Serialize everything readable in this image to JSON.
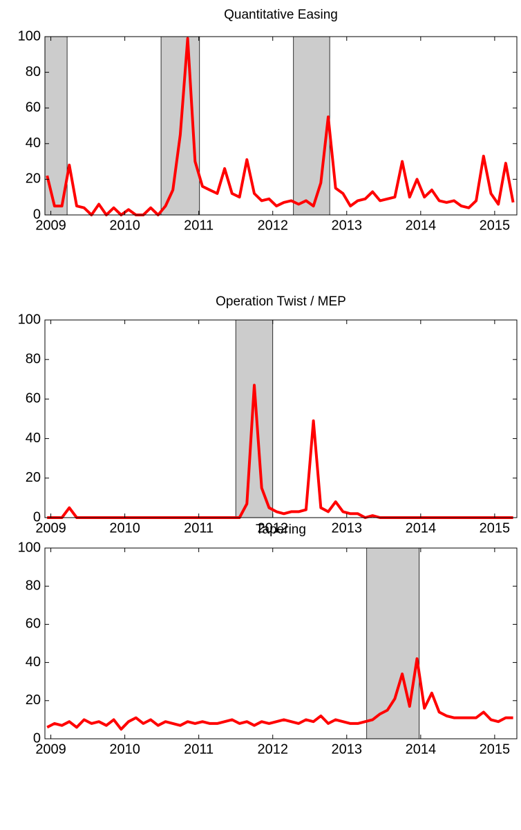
{
  "chart_data": [
    {
      "type": "line",
      "title": "Quantitative Easing",
      "color": "#ff0000",
      "shade_color": "#cccccc",
      "xlim": [
        2008.92,
        2015.3
      ],
      "xticks": [
        2009,
        2010,
        2011,
        2012,
        2013,
        2014,
        2015
      ],
      "ylim": [
        0,
        100
      ],
      "yticks": [
        0,
        20,
        40,
        60,
        80,
        100
      ],
      "shaded": [
        [
          2008.92,
          2009.22
        ],
        [
          2010.49,
          2011.01
        ],
        [
          2012.28,
          2012.77
        ]
      ],
      "x": [
        2008.95,
        2009.05,
        2009.15,
        2009.25,
        2009.35,
        2009.45,
        2009.55,
        2009.65,
        2009.75,
        2009.85,
        2009.95,
        2010.05,
        2010.15,
        2010.25,
        2010.35,
        2010.45,
        2010.55,
        2010.65,
        2010.75,
        2010.85,
        2010.95,
        2011.05,
        2011.15,
        2011.25,
        2011.35,
        2011.45,
        2011.55,
        2011.65,
        2011.75,
        2011.85,
        2011.95,
        2012.05,
        2012.15,
        2012.25,
        2012.35,
        2012.45,
        2012.55,
        2012.65,
        2012.75,
        2012.85,
        2012.95,
        2013.05,
        2013.15,
        2013.25,
        2013.35,
        2013.45,
        2013.55,
        2013.65,
        2013.75,
        2013.85,
        2013.95,
        2014.05,
        2014.15,
        2014.25,
        2014.35,
        2014.45,
        2014.55,
        2014.65,
        2014.75,
        2014.85,
        2014.95,
        2015.05,
        2015.15,
        2015.25
      ],
      "values": [
        22,
        5,
        5,
        28,
        5,
        4,
        0,
        6,
        0,
        4,
        0,
        3,
        0,
        0,
        4,
        0,
        5,
        14,
        45,
        99,
        30,
        16,
        14,
        12,
        26,
        12,
        10,
        31,
        12,
        8,
        9,
        5,
        7,
        8,
        6,
        8,
        5,
        18,
        55,
        15,
        12,
        5,
        8,
        9,
        13,
        8,
        9,
        10,
        30,
        10,
        20,
        10,
        14,
        8,
        7,
        8,
        5,
        4,
        8,
        33,
        12,
        6,
        29,
        7
      ]
    },
    {
      "type": "line",
      "title": "Operation Twist / MEP",
      "color": "#ff0000",
      "shade_color": "#cccccc",
      "xlim": [
        2008.92,
        2015.3
      ],
      "xticks": [
        2009,
        2010,
        2011,
        2012,
        2013,
        2014,
        2015
      ],
      "ylim": [
        0,
        100
      ],
      "yticks": [
        0,
        20,
        40,
        60,
        80,
        100
      ],
      "shaded": [
        [
          2011.5,
          2012.0
        ]
      ],
      "x": [
        2008.95,
        2009.05,
        2009.15,
        2009.25,
        2009.35,
        2009.45,
        2009.55,
        2009.65,
        2009.75,
        2009.85,
        2009.95,
        2010.05,
        2010.15,
        2010.25,
        2010.35,
        2010.45,
        2010.55,
        2010.65,
        2010.75,
        2010.85,
        2010.95,
        2011.05,
        2011.15,
        2011.25,
        2011.35,
        2011.45,
        2011.55,
        2011.65,
        2011.75,
        2011.85,
        2011.95,
        2012.05,
        2012.15,
        2012.25,
        2012.35,
        2012.45,
        2012.55,
        2012.65,
        2012.75,
        2012.85,
        2012.95,
        2013.05,
        2013.15,
        2013.25,
        2013.35,
        2013.45,
        2013.55,
        2013.65,
        2013.75,
        2013.85,
        2013.95,
        2014.05,
        2014.15,
        2014.25,
        2014.35,
        2014.45,
        2014.55,
        2014.65,
        2014.75,
        2014.85,
        2014.95,
        2015.05,
        2015.15,
        2015.25
      ],
      "values": [
        0,
        0,
        0,
        5,
        0,
        0,
        0,
        0,
        0,
        0,
        0,
        0,
        0,
        0,
        0,
        0,
        0,
        0,
        0,
        0,
        0,
        0,
        0,
        0,
        0,
        0,
        0,
        7,
        67,
        15,
        5,
        3,
        2,
        3,
        3,
        4,
        49,
        5,
        3,
        8,
        3,
        2,
        2,
        0,
        1,
        0,
        0,
        0,
        0,
        0,
        0,
        0,
        0,
        0,
        0,
        0,
        0,
        0,
        0,
        0,
        0,
        0,
        0,
        0
      ]
    },
    {
      "type": "line",
      "title": "Tapering",
      "color": "#ff0000",
      "shade_color": "#cccccc",
      "xlim": [
        2008.92,
        2015.3
      ],
      "xticks": [
        2009,
        2010,
        2011,
        2012,
        2013,
        2014,
        2015
      ],
      "ylim": [
        0,
        100
      ],
      "yticks": [
        0,
        20,
        40,
        60,
        80,
        100
      ],
      "shaded": [
        [
          2013.27,
          2013.98
        ]
      ],
      "x": [
        2008.95,
        2009.05,
        2009.15,
        2009.25,
        2009.35,
        2009.45,
        2009.55,
        2009.65,
        2009.75,
        2009.85,
        2009.95,
        2010.05,
        2010.15,
        2010.25,
        2010.35,
        2010.45,
        2010.55,
        2010.65,
        2010.75,
        2010.85,
        2010.95,
        2011.05,
        2011.15,
        2011.25,
        2011.35,
        2011.45,
        2011.55,
        2011.65,
        2011.75,
        2011.85,
        2011.95,
        2012.05,
        2012.15,
        2012.25,
        2012.35,
        2012.45,
        2012.55,
        2012.65,
        2012.75,
        2012.85,
        2012.95,
        2013.05,
        2013.15,
        2013.25,
        2013.35,
        2013.45,
        2013.55,
        2013.65,
        2013.75,
        2013.85,
        2013.95,
        2014.05,
        2014.15,
        2014.25,
        2014.35,
        2014.45,
        2014.55,
        2014.65,
        2014.75,
        2014.85,
        2014.95,
        2015.05,
        2015.15,
        2015.25
      ],
      "values": [
        6,
        8,
        7,
        9,
        6,
        10,
        8,
        9,
        7,
        10,
        5,
        9,
        11,
        8,
        10,
        7,
        9,
        8,
        7,
        9,
        8,
        9,
        8,
        8,
        9,
        10,
        8,
        9,
        7,
        9,
        8,
        9,
        10,
        9,
        8,
        10,
        9,
        12,
        8,
        10,
        9,
        8,
        8,
        9,
        10,
        13,
        15,
        21,
        34,
        17,
        42,
        16,
        24,
        14,
        12,
        11,
        11,
        11,
        11,
        14,
        10,
        9,
        11,
        11
      ]
    }
  ]
}
